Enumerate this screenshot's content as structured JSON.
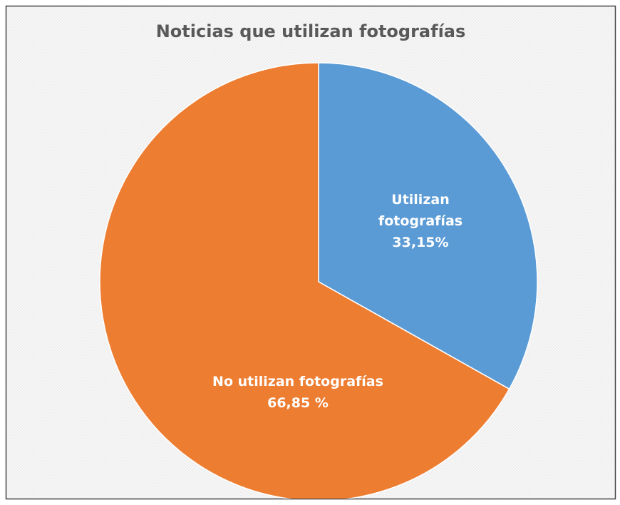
{
  "chart_data": {
    "type": "pie",
    "title": "Noticias que utilizan fotografías",
    "categories": [
      "Utilizan fotografías",
      "No utilizan fotografías"
    ],
    "values": [
      33.15,
      66.85
    ],
    "value_labels": [
      "33,15%",
      "66,85 %"
    ],
    "colors": [
      "#5b9bd5",
      "#ed7d31"
    ]
  }
}
